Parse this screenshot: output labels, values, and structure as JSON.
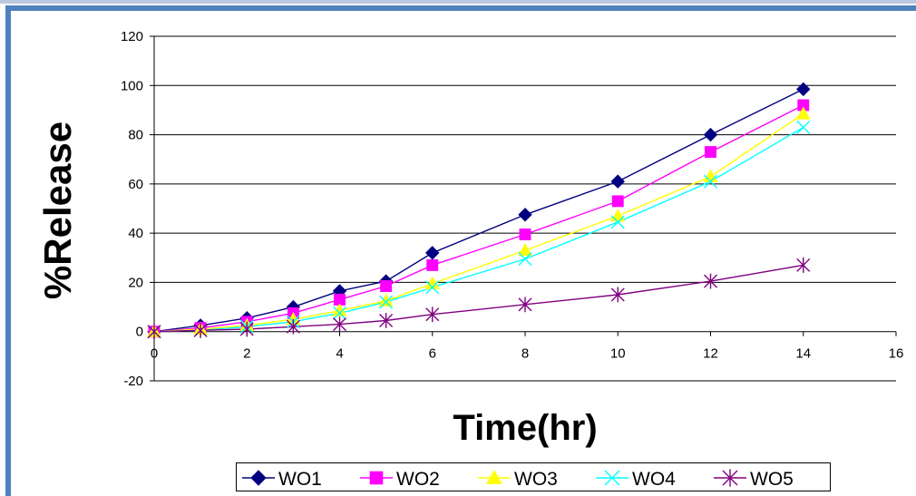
{
  "chart_data": {
    "type": "line",
    "xlabel": "Time(hr)",
    "ylabel": "%Release",
    "xlim": [
      0,
      16
    ],
    "ylim": [
      -20,
      120
    ],
    "x_ticks": [
      0,
      2,
      4,
      6,
      8,
      10,
      12,
      14,
      16
    ],
    "y_ticks": [
      -20,
      0,
      20,
      40,
      60,
      80,
      100,
      120
    ],
    "grid": "horizontal",
    "legend_position": "bottom",
    "x": [
      0,
      1,
      2,
      3,
      4,
      5,
      6,
      8,
      10,
      12,
      14
    ],
    "series": [
      {
        "name": "WO1",
        "color": "#000080",
        "marker": "diamond",
        "values": [
          0,
          2.5,
          5.5,
          10,
          16.5,
          20.5,
          32,
          47.5,
          61,
          80,
          98.5
        ]
      },
      {
        "name": "WO2",
        "color": "#ff00ff",
        "marker": "square",
        "values": [
          0,
          1.5,
          4,
          7.5,
          13,
          18.5,
          27,
          39.5,
          53,
          73,
          92
        ]
      },
      {
        "name": "WO3",
        "color": "#ffff00",
        "marker": "triangle",
        "values": [
          0,
          1,
          2.5,
          5,
          8.5,
          12.5,
          19.5,
          33,
          47,
          63,
          88.5
        ]
      },
      {
        "name": "WO4",
        "color": "#00ffff",
        "marker": "x",
        "values": [
          0,
          0.5,
          2,
          4,
          7.5,
          12,
          18,
          29.5,
          44.5,
          61,
          83
        ]
      },
      {
        "name": "WO5",
        "color": "#800080",
        "marker": "star",
        "values": [
          0,
          0.5,
          1,
          2,
          3,
          4.5,
          7,
          11,
          15,
          20.5,
          27
        ]
      }
    ]
  }
}
